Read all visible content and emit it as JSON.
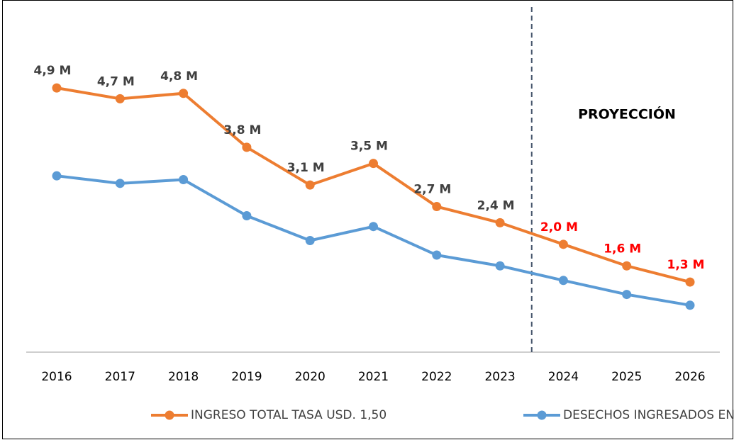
{
  "chart_data": {
    "type": "line",
    "categories": [
      "2016",
      "2017",
      "2018",
      "2019",
      "2020",
      "2021",
      "2022",
      "2023",
      "2024",
      "2025",
      "2026"
    ],
    "series": [
      {
        "name": "INGRESO TOTAL TASA USD. 1,50",
        "color": "#ed7d31",
        "values": [
          4.9,
          4.7,
          4.8,
          3.8,
          3.1,
          3.5,
          2.7,
          2.4,
          2.0,
          1.6,
          1.3
        ],
        "value_labels": [
          "4,9 M",
          "4,7 M",
          "4,8 M",
          "3,8 M",
          "3,1 M",
          "3,5 M",
          "2,7 M",
          "2,4 M",
          "2,0 M",
          "1,6 M",
          "1,3 M"
        ],
        "value_label_colors": [
          "#404040",
          "#404040",
          "#404040",
          "#404040",
          "#404040",
          "#404040",
          "#404040",
          "#404040",
          "#ff0000",
          "#ff0000",
          "#ff0000"
        ]
      },
      {
        "name": "DESECHOS INGRESADOS EN KG",
        "color": "#5b9bd5",
        "values": [
          3.27,
          3.13,
          3.2,
          2.53,
          2.07,
          2.33,
          1.8,
          1.6,
          1.33,
          1.07,
          0.87
        ]
      }
    ],
    "ylim": [
      0,
      6.4
    ],
    "annotation": "PROYECCIÓN"
  }
}
